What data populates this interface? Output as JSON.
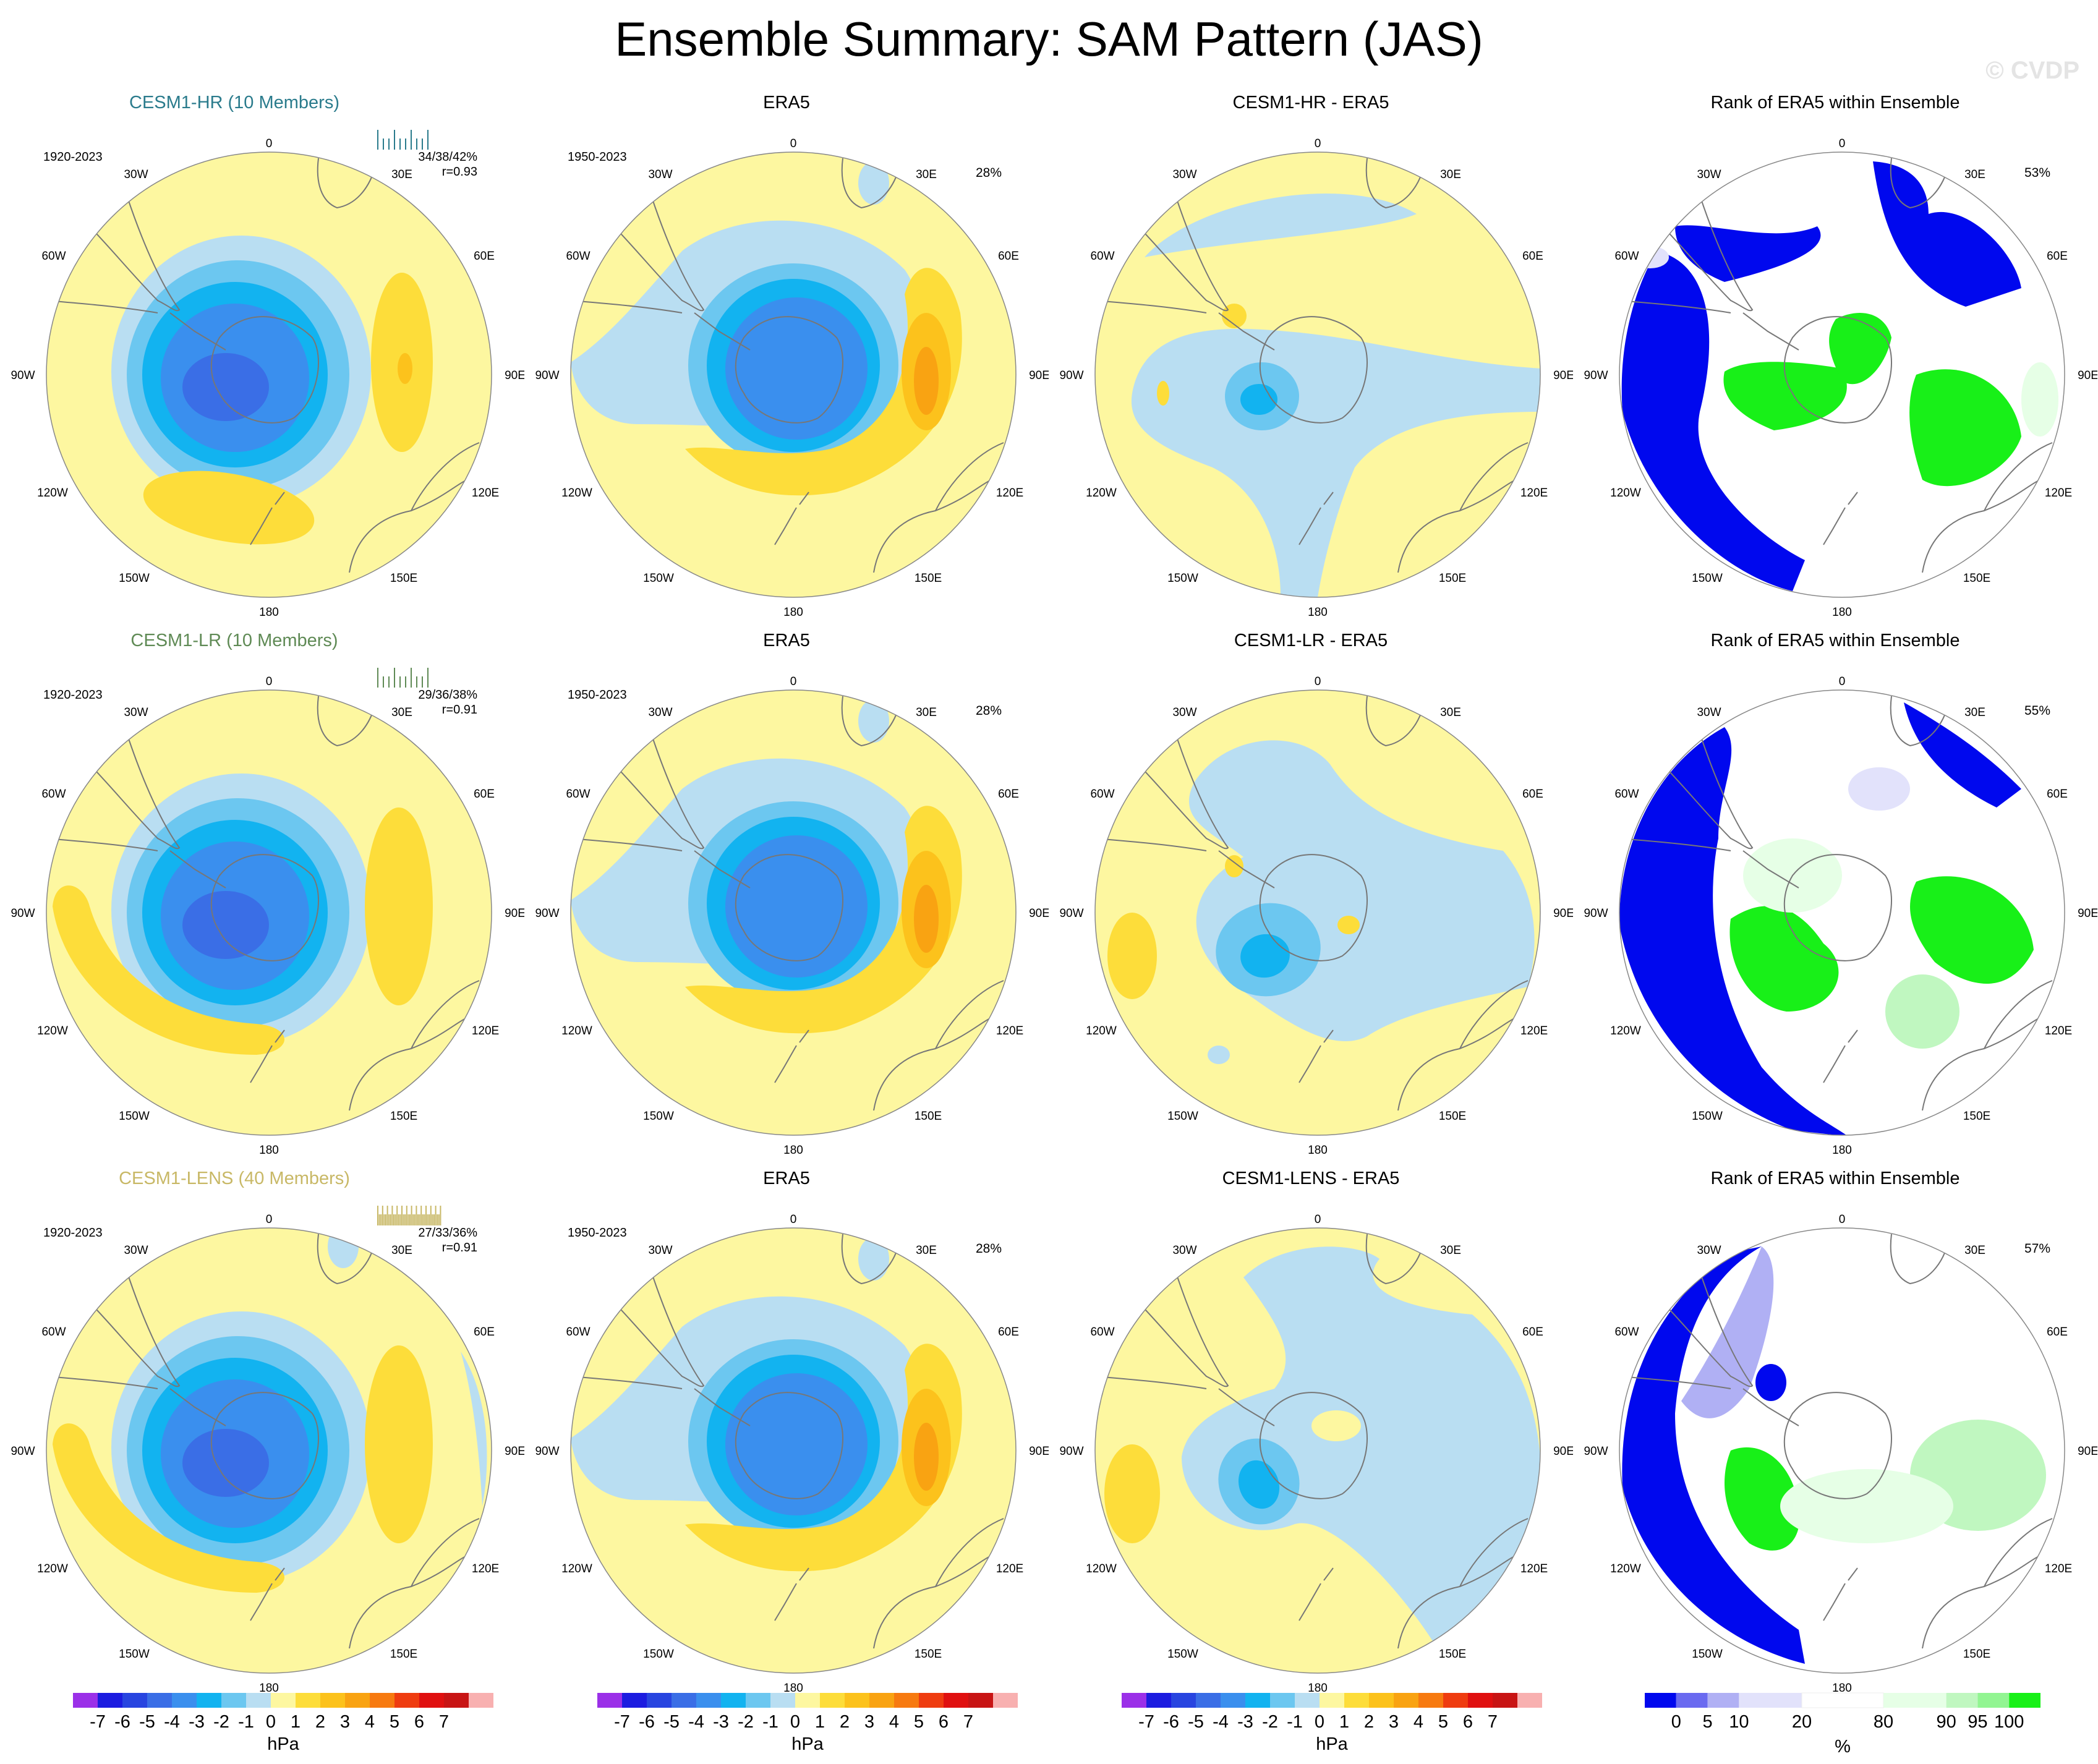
{
  "title": "Ensemble Summary: SAM Pattern (JAS)",
  "watermark": "© CVDP",
  "rows": [
    {
      "model": {
        "title": "CESM1-HR (10 Members)",
        "title_color": "#2a7b8c",
        "years": "1920-2023",
        "stats": "34/38/42%",
        "r": "r=0.93",
        "strip_color": "#2a7b8c"
      },
      "obs": {
        "title": "ERA5",
        "years": "1950-2023",
        "pct": "28%"
      },
      "diff": {
        "title": "CESM1-HR - ERA5"
      },
      "rank": {
        "title": "Rank of ERA5 within Ensemble",
        "pct": "53%"
      }
    },
    {
      "model": {
        "title": "CESM1-LR (10 Members)",
        "title_color": "#5f8a55",
        "years": "1920-2023",
        "stats": "29/36/38%",
        "r": "r=0.91",
        "strip_color": "#5f8a55"
      },
      "obs": {
        "title": "ERA5",
        "years": "1950-2023",
        "pct": "28%"
      },
      "diff": {
        "title": "CESM1-LR - ERA5"
      },
      "rank": {
        "title": "Rank of ERA5 within Ensemble",
        "pct": "55%"
      }
    },
    {
      "model": {
        "title": "CESM1-LENS (40 Members)",
        "title_color": "#c8b866",
        "years": "1920-2023",
        "stats": "27/33/36%",
        "r": "r=0.91",
        "strip_color": "#c8b866"
      },
      "obs": {
        "title": "ERA5",
        "years": "1950-2023",
        "pct": "28%"
      },
      "diff": {
        "title": "CESM1-LENS - ERA5"
      },
      "rank": {
        "title": "Rank of ERA5 within Ensemble",
        "pct": "57%"
      }
    }
  ],
  "map_labels": {
    "lon_top": "0",
    "lon_bottom": "180",
    "w30": "30W",
    "e30": "30E",
    "w60": "60W",
    "e60": "60E",
    "w90": "90W",
    "e90": "90E",
    "w120": "120W",
    "e120": "120E",
    "w150": "150W",
    "e150": "150E"
  },
  "colors": {
    "land_outline": "#777777",
    "ocean_zero": "#fdf7a0"
  },
  "chart_data": {
    "type": "heatmap",
    "description_units": "hPa",
    "pressure_colorbar": {
      "unit": "hPa",
      "ticks": [
        "-7",
        "-6",
        "-5",
        "-4",
        "-3",
        "-2",
        "-1",
        "0",
        "1",
        "2",
        "3",
        "4",
        "5",
        "6",
        "7"
      ],
      "colors": [
        "#9b30e8",
        "#1c1ce0",
        "#2845e0",
        "#3a6ee6",
        "#3a8fee",
        "#12b3f0",
        "#6cc7f0",
        "#b9def2",
        "#fdf7a0",
        "#fddd3a",
        "#fcc21c",
        "#f9a312",
        "#f77a10",
        "#ef3c10",
        "#e01010",
        "#c81414",
        "#f8b0b0"
      ]
    },
    "rank_colorbar": {
      "unit": "%",
      "ticks": [
        "0",
        "5",
        "10",
        "20",
        "80",
        "90",
        "95",
        "100"
      ],
      "colors": [
        "#0008ee",
        "#6a6af0",
        "#b0b0f4",
        "#e2e2fb",
        "#ffffff",
        "#e6ffe6",
        "#c0f7c0",
        "#92f592",
        "#18f018"
      ]
    },
    "rank_legend_segments": [
      {
        "color": "#0008ee",
        "w": 1.0
      },
      {
        "color": "#6a6af0",
        "w": 1.0
      },
      {
        "color": "#b0b0f4",
        "w": 1.0
      },
      {
        "color": "#e2e2fb",
        "w": 2.0
      },
      {
        "color": "#ffffff",
        "w": 2.6
      },
      {
        "color": "#e6ffe6",
        "w": 2.0
      },
      {
        "color": "#c0f7c0",
        "w": 1.0
      },
      {
        "color": "#92f592",
        "w": 1.0
      },
      {
        "color": "#18f018",
        "w": 1.0
      }
    ]
  }
}
